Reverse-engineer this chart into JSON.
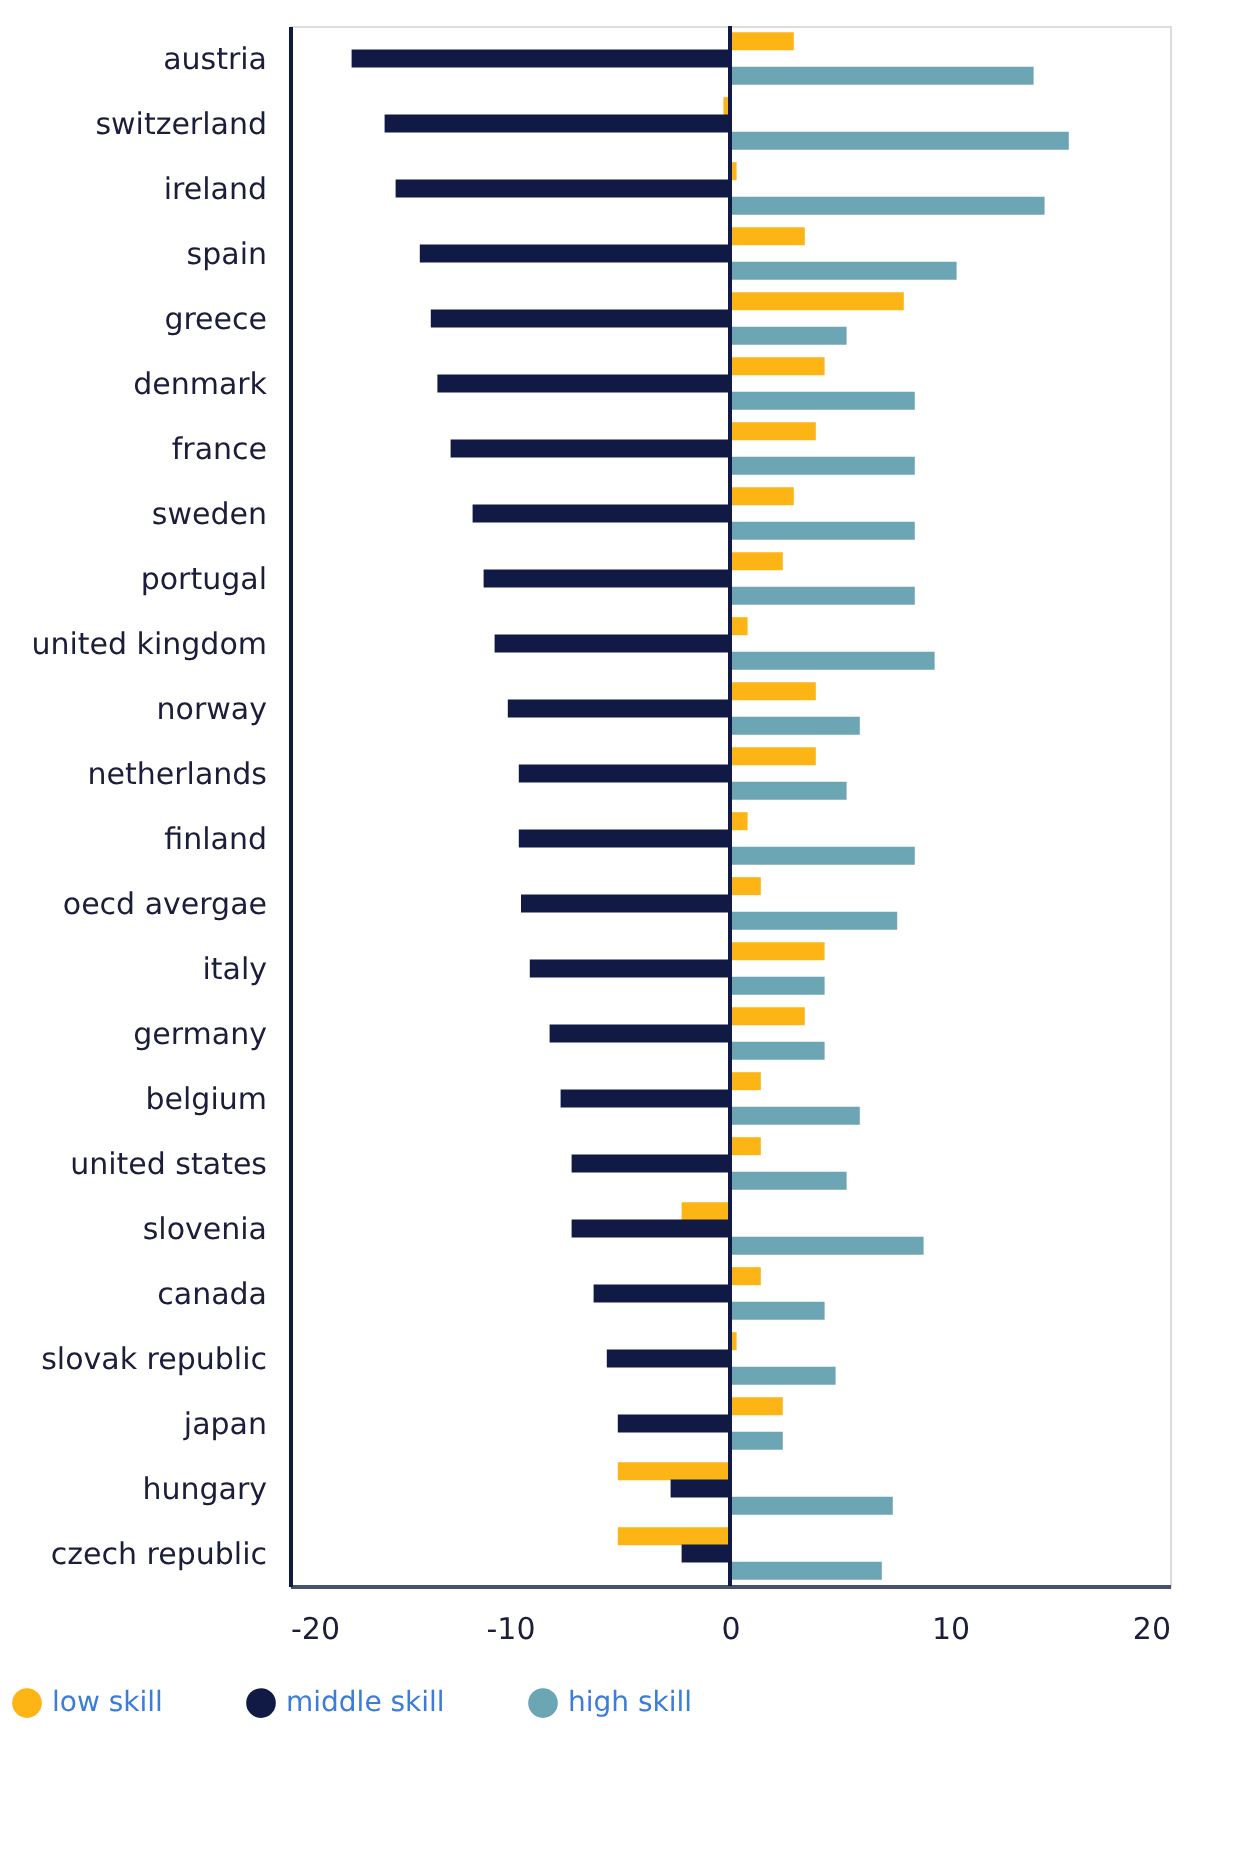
{
  "chart_data": {
    "type": "bar",
    "orientation": "horizontal",
    "categories": [
      "austria",
      "switzerland",
      "ireland",
      "spain",
      "greece",
      "denmark",
      "france",
      "sweden",
      "portugal",
      "united kingdom",
      "norway",
      "netherlands",
      "finland",
      "oecd avergae",
      "italy",
      "germany",
      "belgium",
      "united states",
      "slovenia",
      "canada",
      "slovak republic",
      "japan",
      "hungary",
      "czech republic"
    ],
    "series": [
      {
        "name": "low skill",
        "color": "#fdb515",
        "values": [
          2.9,
          -0.3,
          0.3,
          3.4,
          7.9,
          4.3,
          3.9,
          2.9,
          2.4,
          0.8,
          3.9,
          3.9,
          0.8,
          1.4,
          4.3,
          3.4,
          1.4,
          1.4,
          -2.2,
          1.4,
          0.3,
          2.4,
          -5.1,
          -5.1
        ]
      },
      {
        "name": "middle skill",
        "color": "#111a44",
        "values": [
          -17.2,
          -15.7,
          -15.2,
          -14.1,
          -13.6,
          -13.3,
          -12.7,
          -11.7,
          -11.2,
          -10.7,
          -10.1,
          -9.6,
          -9.6,
          -9.5,
          -9.1,
          -8.2,
          -7.7,
          -7.2,
          -7.2,
          -6.2,
          -5.6,
          -5.1,
          -2.7,
          -2.2
        ]
      },
      {
        "name": "high skill",
        "color": "#6ca5b3",
        "values": [
          13.8,
          15.4,
          14.3,
          10.3,
          5.3,
          8.4,
          8.4,
          8.4,
          8.4,
          9.3,
          5.9,
          5.3,
          8.4,
          7.6,
          4.3,
          4.3,
          5.9,
          5.3,
          8.8,
          4.3,
          4.8,
          2.4,
          7.4,
          6.9
        ]
      }
    ],
    "xlim": [
      -20,
      20
    ],
    "xticks": [
      -20,
      -10,
      0,
      10,
      20
    ],
    "ref_lines": [
      {
        "axis": "x",
        "value": 0,
        "color": "#111a44"
      }
    ],
    "grid": false,
    "legend": "bottom left"
  }
}
